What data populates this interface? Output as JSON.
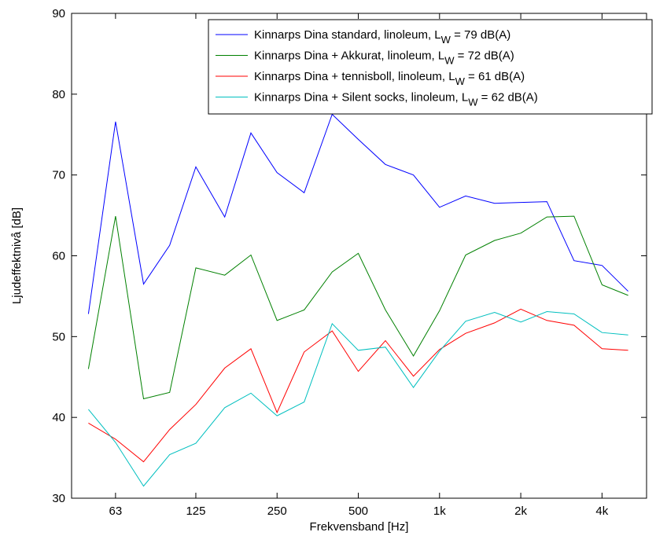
{
  "chart_data": {
    "type": "line",
    "title": "",
    "xlabel": "Frekvensband [Hz]",
    "ylabel": "Ljudeffektnivå [dB]",
    "ylim": [
      30,
      90
    ],
    "yticks": [
      30,
      40,
      50,
      60,
      70,
      80,
      90
    ],
    "ytick_labels": [
      "30",
      "40",
      "50",
      "60",
      "70",
      "80",
      "90"
    ],
    "x": [
      50,
      63,
      80,
      100,
      125,
      160,
      200,
      250,
      315,
      400,
      500,
      630,
      800,
      1000,
      1250,
      1600,
      2000,
      2500,
      3150,
      4000,
      5000
    ],
    "xticks": [
      63,
      125,
      250,
      500,
      1000,
      2000,
      4000
    ],
    "xtick_labels": [
      "63",
      "125",
      "250",
      "500",
      "1k",
      "2k",
      "4k"
    ],
    "xscale": "log",
    "xlim": [
      43.3,
      5850
    ],
    "grid": false,
    "legend_position": "top-right",
    "series": [
      {
        "name": "Kinnarps Dina standard, linoleum, L",
        "sub": "W",
        "name_suffix": " = 79 dB(A)",
        "color": "#0000ff",
        "values": [
          52.8,
          76.6,
          56.5,
          61.3,
          71.0,
          64.8,
          75.2,
          70.3,
          67.8,
          77.5,
          74.4,
          71.3,
          70.0,
          66.0,
          67.4,
          66.5,
          66.6,
          66.7,
          59.4,
          58.8,
          55.6
        ]
      },
      {
        "name": "Kinnarps Dina + Akkurat, linoleum, L",
        "sub": "W",
        "name_suffix": " = 72 dB(A)",
        "color": "#008000",
        "values": [
          46.0,
          64.9,
          42.3,
          43.1,
          58.5,
          57.6,
          60.1,
          52.0,
          53.3,
          58.0,
          60.3,
          53.3,
          47.6,
          53.2,
          60.1,
          61.9,
          62.8,
          64.8,
          64.9,
          56.4,
          55.1
        ]
      },
      {
        "name": "Kinnarps Dina + tennisboll, linoleum, L",
        "sub": "W",
        "name_suffix": " = 61 dB(A)",
        "color": "#ff0000",
        "values": [
          39.3,
          37.3,
          34.5,
          38.5,
          41.6,
          46.1,
          48.5,
          40.6,
          48.1,
          50.7,
          45.7,
          49.5,
          45.1,
          48.4,
          50.4,
          51.7,
          53.4,
          52.0,
          51.4,
          48.5,
          48.3
        ]
      },
      {
        "name": "Kinnarps Dina + Silent socks, linoleum, L",
        "sub": "W",
        "name_suffix": " = 62 dB(A)",
        "color": "#00bfbf",
        "values": [
          41.0,
          36.9,
          31.5,
          35.4,
          36.8,
          41.2,
          43.0,
          40.2,
          41.9,
          51.6,
          48.3,
          48.7,
          43.7,
          48.2,
          51.9,
          53.0,
          51.8,
          53.1,
          52.8,
          50.5,
          50.2
        ]
      }
    ]
  }
}
